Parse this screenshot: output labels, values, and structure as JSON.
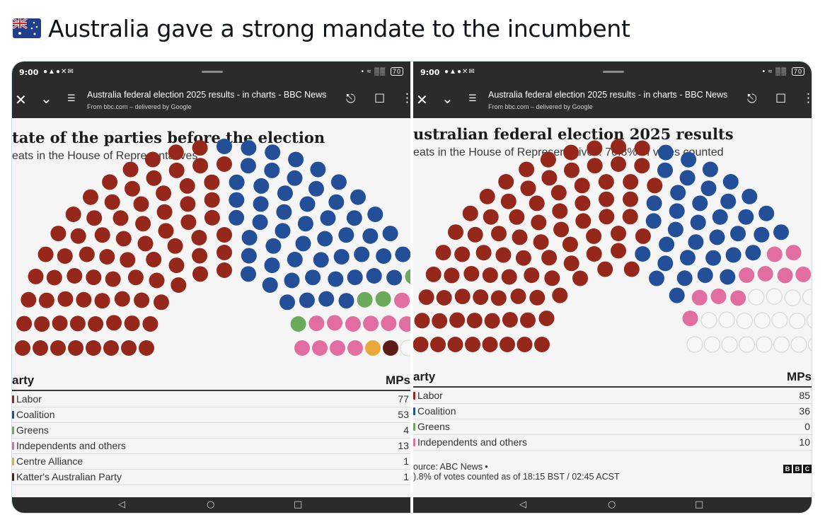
{
  "tweet": {
    "flag_icon": "australia-flag-emoji",
    "text": "Australia gave a strong mandate to the incumbent"
  },
  "phone": {
    "time": "9:00",
    "battery": "70",
    "status_icons": "notification-icons",
    "browser_title": "Australia federal election 2025 results - in charts - BBC News",
    "browser_subtitle": "From bbc.com – delivered by Google",
    "icons": [
      "close-icon",
      "chevron-down-icon",
      "page-settings-icon",
      "share-icon",
      "bookmark-icon",
      "more-options-icon"
    ],
    "nav_icons": [
      "back-icon",
      "home-icon",
      "recents-icon"
    ]
  },
  "left": {
    "title": "tate of the parties before the election",
    "subtitle": "eats in the House of Representatives",
    "table_header_party": "arty",
    "table_header_mps": "MPs",
    "rows": [
      {
        "party": "Labor",
        "mps": "77"
      },
      {
        "party": "Coalition",
        "mps": "53"
      },
      {
        "party": "Greens",
        "mps": "4"
      },
      {
        "party": "Independents and others",
        "mps": "13"
      },
      {
        "party": "Centre Alliance",
        "mps": "1"
      },
      {
        "party": "Katter's Australian Party",
        "mps": "1"
      }
    ]
  },
  "right": {
    "title": "ustralian federal election 2025 results",
    "subtitle": "eats in the House of Representatives: 70.8% of votes counted",
    "table_header_party": "arty",
    "table_header_mps": "MPs",
    "rows": [
      {
        "party": "Labor",
        "mps": "85"
      },
      {
        "party": "Coalition",
        "mps": "36"
      },
      {
        "party": "Greens",
        "mps": "0"
      },
      {
        "party": "Independents and others",
        "mps": "10"
      }
    ],
    "source_line1": "ource: ABC News •",
    "source_line2": ").8% of votes counted as of 18:15 BST / 02:45 ACST",
    "logo_letters": [
      "B",
      "B",
      "C"
    ]
  },
  "colors": {
    "labor": "#96281b",
    "coalition": "#234f99",
    "greens": "#6aaa5a",
    "independents": "#e26ea1",
    "centre_alliance": "#e8a93a",
    "katter": "#5e1a14",
    "undecided_stroke": "#d8d8d8"
  },
  "chart_data": [
    {
      "type": "parliament",
      "series": [
        {
          "name": "Labor",
          "values": [
            77
          ]
        },
        {
          "name": "Coalition",
          "values": [
            53
          ]
        },
        {
          "name": "Greens",
          "values": [
            4
          ]
        },
        {
          "name": "Independents and others",
          "values": [
            13
          ]
        },
        {
          "name": "Centre Alliance",
          "values": [
            1
          ]
        },
        {
          "name": "Katter's Australian Party",
          "values": [
            1
          ]
        }
      ],
      "empty_seats": 2
    },
    {
      "type": "parliament",
      "series": [
        {
          "name": "Labor",
          "values": [
            85
          ]
        },
        {
          "name": "Coalition",
          "values": [
            36
          ]
        },
        {
          "name": "Greens",
          "values": [
            0
          ]
        },
        {
          "name": "Independents and others",
          "values": [
            10
          ]
        }
      ],
      "empty_seats": 19
    }
  ]
}
